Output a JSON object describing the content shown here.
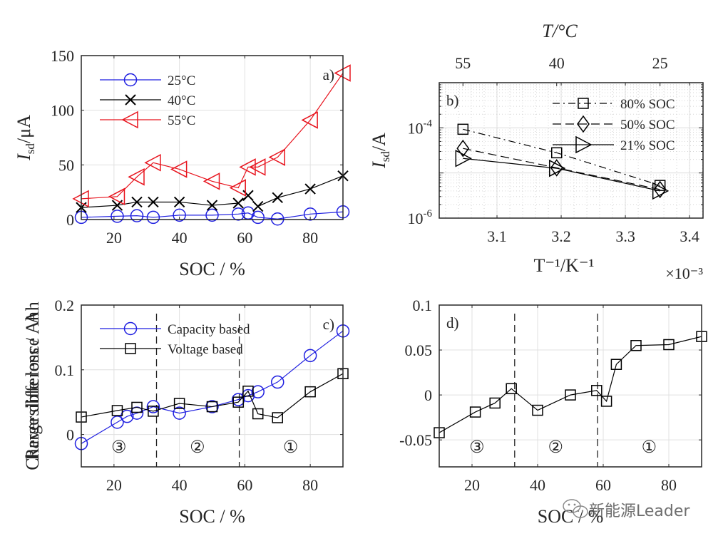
{
  "chart_data": [
    {
      "id": "a",
      "type": "line",
      "panel_label": "a)",
      "title": "",
      "xlabel": "SOC / %",
      "ylabel": "I_sd / μA",
      "ylabel_parts": {
        "main": "I",
        "sub": "sd",
        "rest": "/μA"
      },
      "xlim": [
        10,
        90
      ],
      "ylim": [
        0,
        150
      ],
      "xticks": [
        20,
        40,
        60,
        80
      ],
      "yticks": [
        0,
        50,
        100,
        150
      ],
      "grid": true,
      "legend_position": "top-left",
      "series": [
        {
          "name": "25°C",
          "color": "#1f1fe0",
          "marker": "circle",
          "x": [
            10,
            21,
            27,
            32,
            40,
            50,
            58,
            61,
            64,
            70,
            80,
            90
          ],
          "y": [
            2,
            3,
            3.5,
            2,
            4,
            4,
            5,
            6,
            2,
            0.5,
            5,
            7
          ]
        },
        {
          "name": "40°C",
          "color": "#000000",
          "marker": "x",
          "x": [
            10,
            21,
            27,
            32,
            40,
            50,
            58,
            61,
            64,
            70,
            80,
            90
          ],
          "y": [
            11,
            13,
            16,
            16,
            16,
            13,
            15,
            22,
            12,
            20,
            28,
            40
          ]
        },
        {
          "name": "55°C",
          "color": "#e8141e",
          "marker": "triangle-left",
          "x": [
            10,
            21,
            27,
            32,
            40,
            50,
            58,
            61,
            64,
            70,
            80,
            90
          ],
          "y": [
            19,
            21,
            39,
            52,
            46,
            35,
            29,
            48,
            48,
            57,
            91,
            134
          ]
        }
      ]
    },
    {
      "id": "b",
      "type": "line",
      "panel_label": "b)",
      "xlabel": "T⁻¹/K⁻¹",
      "x_multiplier": "×10⁻³",
      "top_xlabel": "T/°C",
      "top_xticks": [
        {
          "value": 3.047,
          "label": "55"
        },
        {
          "value": 3.193,
          "label": "40"
        },
        {
          "value": 3.354,
          "label": "25"
        }
      ],
      "ylabel": "I_sd / A",
      "ylabel_parts": {
        "main": "I",
        "sub": "sd",
        "rest": "/A"
      },
      "yscale": "log",
      "xlim": [
        3.01,
        3.421
      ],
      "ylim": [
        1e-06,
        0.001
      ],
      "xticks": [
        3.1,
        3.2,
        3.3,
        3.4
      ],
      "xtick_labels": [
        "3.1",
        "3.2",
        "3.3",
        "3.4"
      ],
      "yticks": [
        {
          "value": 1e-06,
          "base": "10",
          "exp": "-6"
        },
        {
          "value": 0.0001,
          "base": "10",
          "exp": "-4"
        }
      ],
      "grid": true,
      "legend_position": "top-right",
      "series": [
        {
          "name": "80% SOC",
          "color": "#000000",
          "marker": "square",
          "linestyle": "dashdot",
          "x": [
            3.047,
            3.193,
            3.354
          ],
          "y": [
            9.3e-05,
            2.8e-05,
            5.3e-06
          ]
        },
        {
          "name": "50% SOC",
          "color": "#000000",
          "marker": "diamond",
          "linestyle": "dashed",
          "x": [
            3.047,
            3.193,
            3.354
          ],
          "y": [
            3.5e-05,
            1.3e-05,
            4.3e-06
          ]
        },
        {
          "name": "21% SOC",
          "color": "#000000",
          "marker": "triangle-right",
          "linestyle": "solid",
          "x": [
            3.047,
            3.193,
            3.354
          ],
          "y": [
            2.1e-05,
            1.27e-05,
            4e-06
          ]
        }
      ]
    },
    {
      "id": "c",
      "type": "line",
      "panel_label": "c)",
      "xlabel": "SOC / %",
      "ylabel": "Reversible loss / Ah",
      "xlim": [
        10,
        90
      ],
      "ylim": [
        -0.05,
        0.2
      ],
      "xticks": [
        20,
        40,
        60,
        80
      ],
      "yticks": [
        0,
        0.1,
        0.2
      ],
      "ytick_labels": [
        "0",
        "0.1",
        "0.2"
      ],
      "grid": true,
      "legend_position": "top-left",
      "region_boundaries": [
        33,
        58.3
      ],
      "region_labels": [
        {
          "x": 21.5,
          "label": "③"
        },
        {
          "x": 45.5,
          "label": "②"
        },
        {
          "x": 74,
          "label": "①"
        }
      ],
      "series": [
        {
          "name": "Capacity based",
          "color": "#1f1fe0",
          "marker": "circle",
          "x": [
            10,
            21,
            24,
            27,
            32,
            40,
            50,
            58,
            61,
            64,
            70,
            80,
            90
          ],
          "y": [
            -0.014,
            0.019,
            0.028,
            0.033,
            0.043,
            0.033,
            0.043,
            0.054,
            0.06,
            0.066,
            0.081,
            0.122,
            0.16
          ]
        },
        {
          "name": "Voltage based",
          "color": "#000000",
          "marker": "square",
          "x": [
            10,
            21,
            27,
            32,
            40,
            50,
            58,
            61,
            64,
            70,
            80,
            90
          ],
          "y": [
            0.027,
            0.037,
            0.042,
            0.036,
            0.048,
            0.043,
            0.05,
            0.067,
            0.032,
            0.026,
            0.066,
            0.094
          ]
        }
      ]
    },
    {
      "id": "d",
      "type": "line",
      "panel_label": "d)",
      "xlabel": "SOC / %",
      "ylabel": "Charge difference / Ah",
      "xlim": [
        10,
        90
      ],
      "ylim": [
        -0.08,
        0.1
      ],
      "xticks": [
        20,
        40,
        60,
        80
      ],
      "yticks": [
        -0.05,
        0,
        0.05,
        0.1
      ],
      "ytick_labels": [
        "-0.05",
        "0",
        "0.05",
        "0.1"
      ],
      "grid": true,
      "region_boundaries": [
        33,
        58.3
      ],
      "region_labels": [
        {
          "x": 21.5,
          "label": "③"
        },
        {
          "x": 45.5,
          "label": "②"
        },
        {
          "x": 74,
          "label": "①"
        }
      ],
      "series": [
        {
          "name": "Charge difference",
          "color": "#000000",
          "marker": "square",
          "x": [
            10,
            21,
            27,
            32,
            40,
            50,
            58,
            61,
            64,
            70,
            80,
            90
          ],
          "y": [
            -0.042,
            -0.019,
            -0.009,
            0.007,
            -0.017,
            0,
            0.005,
            -0.007,
            0.034,
            0.055,
            0.056,
            0.065
          ]
        }
      ]
    }
  ],
  "watermark": {
    "text": "新能源Leader",
    "icon": "wechat-icon"
  }
}
